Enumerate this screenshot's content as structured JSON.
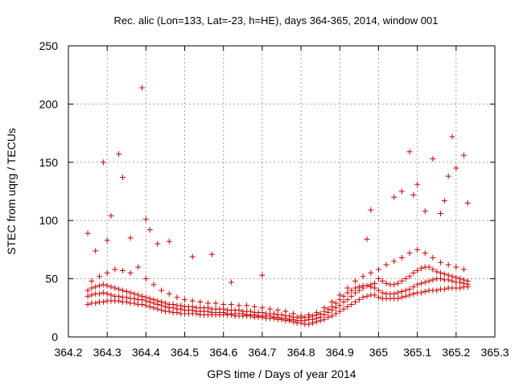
{
  "chart_data": {
    "type": "scatter",
    "title": "Rec. alic (Lon=133, Lat=-23, h=HE), days 364-365, 2014, window 001",
    "xlabel": "GPS time / Days of year 2014",
    "ylabel": "STEC from uqrg / TECUs",
    "xlim": [
      364.2,
      365.3
    ],
    "ylim": [
      0,
      250
    ],
    "xticks": [
      364.2,
      364.3,
      364.4,
      364.5,
      364.6,
      364.7,
      364.8,
      364.9,
      365.0,
      365.1,
      365.2,
      365.3
    ],
    "xtick_labels": [
      "364.2",
      "364.3",
      "364.4",
      "364.5",
      "364.6",
      "364.7",
      "364.8",
      "364.9",
      "365",
      "365.1",
      "365.2",
      "365.3"
    ],
    "yticks": [
      0,
      50,
      100,
      150,
      200,
      250
    ],
    "ytick_labels": [
      "0",
      "50",
      "100",
      "150",
      "200",
      "250"
    ],
    "grid": true,
    "marker": "+",
    "color": "#cc0000",
    "series": [
      {
        "x": [
          364.25,
          364.26,
          364.27,
          364.28,
          364.29,
          364.3,
          364.31,
          364.32,
          364.33,
          364.34,
          364.35,
          364.36,
          364.37,
          364.38,
          364.39,
          364.4,
          364.41,
          364.42,
          364.43,
          364.44,
          364.45,
          364.46,
          364.47,
          364.48,
          364.49,
          364.5,
          364.51,
          364.52,
          364.53,
          364.54,
          364.55,
          364.56,
          364.57,
          364.58,
          364.59,
          364.6,
          364.61,
          364.62,
          364.63,
          364.64,
          364.65,
          364.66,
          364.67,
          364.68,
          364.69,
          364.7,
          364.71,
          364.72,
          364.73,
          364.74,
          364.75,
          364.76,
          364.77,
          364.78,
          364.79,
          364.8,
          364.81,
          364.82,
          364.83,
          364.84,
          364.85,
          364.86,
          364.87,
          364.88,
          364.89,
          364.9,
          364.91,
          364.92,
          364.93,
          364.94,
          364.95,
          364.96,
          364.97,
          364.98,
          364.99,
          365.0,
          365.01,
          365.02,
          365.03,
          365.04,
          365.05,
          365.06,
          365.07,
          365.08,
          365.09,
          365.1,
          365.11,
          365.12,
          365.13,
          365.14,
          365.15,
          365.16,
          365.17,
          365.18,
          365.19,
          365.2,
          365.21,
          365.22,
          365.23
        ],
        "y": [
          28,
          29,
          29,
          30,
          30,
          31,
          31,
          31,
          31,
          30,
          30,
          29,
          29,
          28,
          28,
          27,
          26,
          25,
          24,
          23,
          22,
          22,
          21,
          21,
          20,
          20,
          20,
          20,
          20,
          19,
          19,
          19,
          19,
          19,
          19,
          19,
          19,
          19,
          18,
          18,
          18,
          18,
          18,
          17,
          17,
          17,
          16,
          16,
          16,
          15,
          15,
          14,
          14,
          13,
          12,
          12,
          11,
          11,
          12,
          13,
          14,
          15,
          17,
          18,
          20,
          22,
          24,
          26,
          28,
          30,
          32,
          34,
          35,
          36,
          36,
          34,
          33,
          33,
          33,
          33,
          33,
          34,
          35,
          36,
          37,
          38,
          38,
          39,
          40,
          40,
          40,
          41,
          41,
          42,
          42,
          42,
          42,
          43,
          43
        ]
      },
      {
        "x": [
          364.25,
          364.26,
          364.27,
          364.28,
          364.29,
          364.3,
          364.31,
          364.32,
          364.33,
          364.34,
          364.35,
          364.36,
          364.37,
          364.38,
          364.39,
          364.4,
          364.41,
          364.42,
          364.43,
          364.44,
          364.45,
          364.46,
          364.47,
          364.48,
          364.49,
          364.5,
          364.51,
          364.52,
          364.53,
          364.54,
          364.55,
          364.56,
          364.57,
          364.58,
          364.59,
          364.6,
          364.61,
          364.62,
          364.63,
          364.64,
          364.65,
          364.66,
          364.67,
          364.68,
          364.69,
          364.7,
          364.71,
          364.72,
          364.73,
          364.74,
          364.75,
          364.76,
          364.77,
          364.78,
          364.79,
          364.8,
          364.81,
          364.82,
          364.83,
          364.84,
          364.85,
          364.86,
          364.87,
          364.88,
          364.89,
          364.9,
          364.91,
          364.92,
          364.93,
          364.94,
          364.95,
          364.96,
          364.97,
          364.98,
          364.99,
          365.0,
          365.01,
          365.02,
          365.03,
          365.04,
          365.05,
          365.06,
          365.07,
          365.08,
          365.09,
          365.1,
          365.11,
          365.12,
          365.13,
          365.14,
          365.15,
          365.16,
          365.17,
          365.18,
          365.19,
          365.2,
          365.21,
          365.22,
          365.23
        ],
        "y": [
          35,
          36,
          37,
          37,
          38,
          37,
          36,
          35,
          35,
          34,
          34,
          33,
          33,
          32,
          32,
          31,
          30,
          29,
          28,
          27,
          26,
          25,
          25,
          24,
          24,
          23,
          23,
          23,
          22,
          22,
          22,
          22,
          21,
          21,
          21,
          21,
          20,
          20,
          20,
          20,
          20,
          19,
          19,
          19,
          18,
          18,
          18,
          18,
          17,
          17,
          16,
          16,
          15,
          15,
          14,
          14,
          14,
          15,
          15,
          16,
          17,
          19,
          21,
          23,
          25,
          27,
          30,
          32,
          35,
          38,
          40,
          42,
          44,
          45,
          46,
          40,
          38,
          37,
          37,
          37,
          38,
          39,
          40,
          41,
          43,
          45,
          46,
          47,
          48,
          49,
          50,
          50,
          49,
          49,
          48,
          47,
          47,
          46,
          45
        ]
      },
      {
        "x": [
          364.25,
          364.26,
          364.27,
          364.28,
          364.29,
          364.3,
          364.31,
          364.32,
          364.33,
          364.34,
          364.35,
          364.36,
          364.37,
          364.38,
          364.39,
          364.4,
          364.41,
          364.42,
          364.43,
          364.44,
          364.45,
          364.46,
          364.47,
          364.48,
          364.49,
          364.5,
          364.51,
          364.52,
          364.53,
          364.54,
          364.55,
          364.56,
          364.57,
          364.58,
          364.59,
          364.6,
          364.61,
          364.62,
          364.63,
          364.64,
          364.65,
          364.66,
          364.67,
          364.68,
          364.69,
          364.7,
          364.71,
          364.72,
          364.73,
          364.74,
          364.75,
          364.76,
          364.77,
          364.78,
          364.79,
          364.8,
          364.81,
          364.82,
          364.83,
          364.84,
          364.85,
          364.86,
          364.87,
          364.88,
          364.89,
          364.9,
          364.91,
          364.92,
          364.93,
          364.94,
          364.95,
          364.96,
          364.97,
          364.98,
          364.99,
          365.0,
          365.01,
          365.02,
          365.03,
          365.04,
          365.05,
          365.06,
          365.07,
          365.08,
          365.09,
          365.1,
          365.11,
          365.12,
          365.13,
          365.14,
          365.15,
          365.16,
          365.17,
          365.18,
          365.19,
          365.2,
          365.21,
          365.22,
          365.23
        ],
        "y": [
          40,
          42,
          43,
          44,
          45,
          44,
          43,
          42,
          41,
          40,
          39,
          38,
          37,
          36,
          35,
          34,
          33,
          32,
          31,
          30,
          29,
          28,
          28,
          27,
          27,
          26,
          26,
          26,
          25,
          25,
          25,
          25,
          24,
          24,
          24,
          24,
          23,
          23,
          23,
          23,
          22,
          22,
          22,
          21,
          21,
          21,
          20,
          20,
          20,
          19,
          19,
          18,
          18,
          17,
          17,
          16,
          17,
          17,
          18,
          19,
          20,
          22,
          24,
          26,
          29,
          32,
          35,
          38,
          40,
          42,
          43,
          44,
          44,
          43,
          42,
          50,
          48,
          46,
          45,
          45,
          46,
          48,
          50,
          52,
          55,
          57,
          59,
          60,
          60,
          58,
          56,
          55,
          54,
          53,
          52,
          51,
          50,
          49,
          48
        ]
      },
      {
        "x": [
          364.26,
          364.28,
          364.3,
          364.32,
          364.34,
          364.36,
          364.38,
          364.4,
          364.42,
          364.44,
          364.46,
          364.48,
          364.5,
          364.52,
          364.54,
          364.56,
          364.58,
          364.6,
          364.62,
          364.64,
          364.66,
          364.68,
          364.7,
          364.72,
          364.74,
          364.76,
          364.78,
          364.8,
          364.82,
          364.84,
          364.86,
          364.88,
          364.9,
          364.92,
          364.94,
          364.96,
          364.98,
          365.0,
          365.02,
          365.04,
          365.06,
          365.08,
          365.1,
          365.12,
          365.14,
          365.16,
          365.18,
          365.2,
          365.22
        ],
        "y": [
          48,
          52,
          55,
          58,
          57,
          55,
          60,
          50,
          45,
          40,
          37,
          34,
          32,
          31,
          30,
          29,
          29,
          28,
          28,
          27,
          27,
          26,
          25,
          24,
          23,
          22,
          20,
          18,
          19,
          21,
          25,
          30,
          36,
          42,
          48,
          52,
          55,
          58,
          62,
          65,
          68,
          72,
          75,
          72,
          68,
          64,
          62,
          60,
          58
        ]
      },
      {
        "x": [
          364.25,
          364.27,
          364.29,
          364.3,
          364.31,
          364.33,
          364.34,
          364.36,
          364.39,
          364.4,
          364.41,
          364.43,
          364.46,
          364.52,
          364.57,
          364.62,
          364.7,
          364.97,
          364.98,
          365.04,
          365.06,
          365.08,
          365.09,
          365.1,
          365.12,
          365.14,
          365.16,
          365.17,
          365.18,
          365.19,
          365.2,
          365.22,
          365.23
        ],
        "y": [
          89,
          74,
          150,
          83,
          104,
          157,
          137,
          85,
          214,
          101,
          92,
          80,
          82,
          69,
          71,
          47,
          53,
          84,
          109,
          120,
          125,
          159,
          122,
          131,
          108,
          153,
          106,
          117,
          138,
          172,
          145,
          156,
          115
        ]
      }
    ]
  }
}
